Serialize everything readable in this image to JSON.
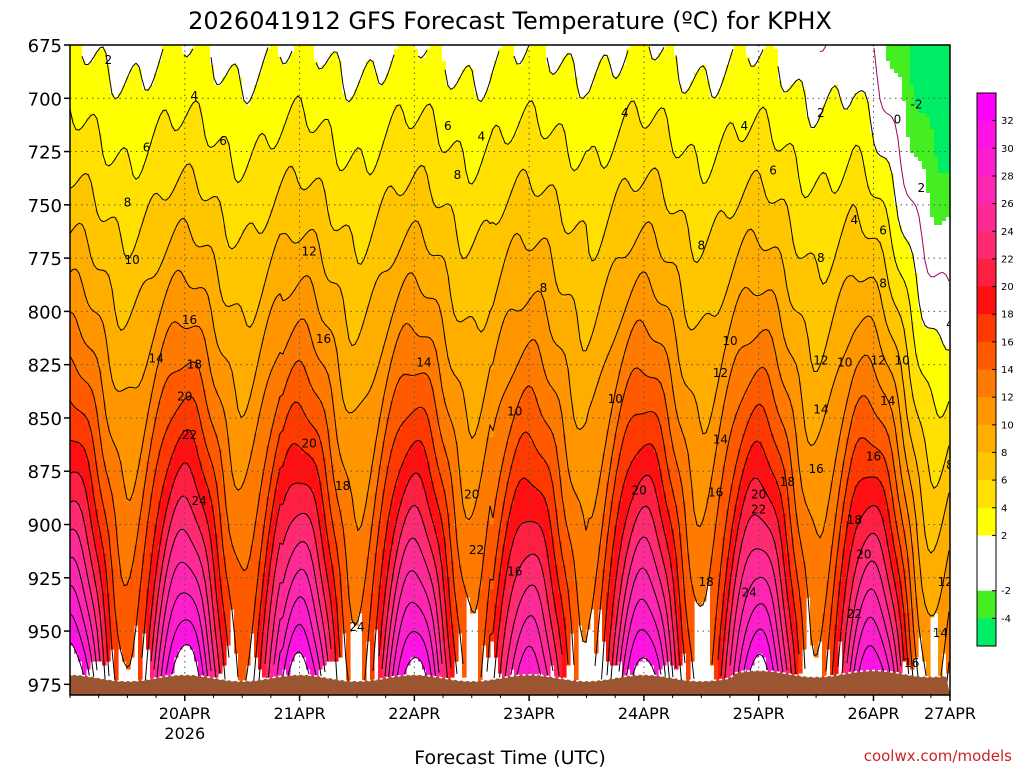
{
  "chart_data": {
    "type": "heatmap",
    "title": "2026041912 GFS Forecast Temperature (ºC) for KPHX",
    "xlabel": "Forecast Time (UTC)",
    "credit": "coolwx.com/models",
    "y_axis": {
      "ticks": [
        675,
        700,
        725,
        750,
        775,
        800,
        825,
        850,
        875,
        900,
        925,
        950,
        975
      ],
      "tick_labels": [
        "675",
        "700",
        "725",
        "750",
        "775",
        "800",
        "825",
        "850",
        "875",
        "900",
        "925",
        "950",
        "975"
      ],
      "range": [
        675,
        980
      ],
      "direction": "inverted"
    },
    "x_axis": {
      "range_hours": [
        -8,
        176
      ],
      "ticks": [
        {
          "hour": 16,
          "label": "20APR",
          "sublabel": "2026"
        },
        {
          "hour": 40,
          "label": "21APR",
          "sublabel": ""
        },
        {
          "hour": 64,
          "label": "22APR",
          "sublabel": ""
        },
        {
          "hour": 88,
          "label": "23APR",
          "sublabel": ""
        },
        {
          "hour": 112,
          "label": "24APR",
          "sublabel": ""
        },
        {
          "hour": 136,
          "label": "25APR",
          "sublabel": ""
        },
        {
          "hour": 160,
          "label": "26APR",
          "sublabel": ""
        },
        {
          "hour": 184,
          "label": "27APR",
          "sublabel": ""
        }
      ]
    },
    "colorbar": {
      "labels": [
        "32",
        "30",
        "28",
        "26",
        "24",
        "22",
        "20",
        "18",
        "16",
        "14",
        "12",
        "10",
        "8",
        "6",
        "4",
        "2",
        "-2",
        "-4"
      ],
      "bands": [
        {
          "min": 32,
          "color": "#ff00ff"
        },
        {
          "min": 30,
          "color": "#ff12e4"
        },
        {
          "min": 28,
          "color": "#ff1ecc"
        },
        {
          "min": 26,
          "color": "#ff26b2"
        },
        {
          "min": 24,
          "color": "#ff2a96"
        },
        {
          "min": 22,
          "color": "#ff2a72"
        },
        {
          "min": 20,
          "color": "#ff1f40"
        },
        {
          "min": 18,
          "color": "#ff0f10"
        },
        {
          "min": 16,
          "color": "#ff3a00"
        },
        {
          "min": 14,
          "color": "#ff5a00"
        },
        {
          "min": 12,
          "color": "#ff7a00"
        },
        {
          "min": 10,
          "color": "#ff9600"
        },
        {
          "min": 8,
          "color": "#ffae00"
        },
        {
          "min": 6,
          "color": "#ffc600"
        },
        {
          "min": 4,
          "color": "#ffe000"
        },
        {
          "min": 2,
          "color": "#ffff00"
        },
        {
          "min": 0,
          "color": "#ffffff"
        },
        {
          "min": -2,
          "color": "#ffffff"
        },
        {
          "min": -4,
          "color": "#44ee22"
        },
        {
          "min": -99,
          "color": "#00ee66"
        }
      ]
    },
    "contour_levels": [
      0,
      2,
      4,
      6,
      8,
      10,
      12,
      14,
      16,
      18,
      20,
      22,
      24,
      26,
      28,
      30,
      32
    ],
    "contour_labels": [
      {
        "t": 0,
        "p": 682,
        "v": "2"
      },
      {
        "t": 18,
        "p": 699,
        "v": "4"
      },
      {
        "t": 24,
        "p": 720,
        "v": "6"
      },
      {
        "t": 8,
        "p": 723,
        "v": "6"
      },
      {
        "t": 4,
        "p": 749,
        "v": "8"
      },
      {
        "t": 5,
        "p": 776,
        "v": "10"
      },
      {
        "t": 42,
        "p": 772,
        "v": "12"
      },
      {
        "t": 17,
        "p": 804,
        "v": "16"
      },
      {
        "t": 10,
        "p": 822,
        "v": "14"
      },
      {
        "t": 18,
        "p": 825,
        "v": "18"
      },
      {
        "t": 16,
        "p": 840,
        "v": "20"
      },
      {
        "t": 17,
        "p": 858,
        "v": "22"
      },
      {
        "t": 19,
        "p": 889,
        "v": "24"
      },
      {
        "t": 45,
        "p": 813,
        "v": "16"
      },
      {
        "t": 42,
        "p": 862,
        "v": "20"
      },
      {
        "t": 49,
        "p": 882,
        "v": "18"
      },
      {
        "t": 52,
        "p": 948,
        "v": "24"
      },
      {
        "t": 71,
        "p": 713,
        "v": "6"
      },
      {
        "t": 78,
        "p": 718,
        "v": "4"
      },
      {
        "t": 73,
        "p": 736,
        "v": "8"
      },
      {
        "t": 66,
        "p": 824,
        "v": "14"
      },
      {
        "t": 76,
        "p": 886,
        "v": "20"
      },
      {
        "t": 77,
        "p": 912,
        "v": "22"
      },
      {
        "t": 85,
        "p": 847,
        "v": "10"
      },
      {
        "t": 85,
        "p": 922,
        "v": "16"
      },
      {
        "t": 108,
        "p": 707,
        "v": "4"
      },
      {
        "t": 91,
        "p": 789,
        "v": "8"
      },
      {
        "t": 124,
        "p": 769,
        "v": "8"
      },
      {
        "t": 106,
        "p": 841,
        "v": "10"
      },
      {
        "t": 111,
        "p": 884,
        "v": "20"
      },
      {
        "t": 130,
        "p": 814,
        "v": "10"
      },
      {
        "t": 128,
        "p": 829,
        "v": "12"
      },
      {
        "t": 128,
        "p": 860,
        "v": "14"
      },
      {
        "t": 127,
        "p": 885,
        "v": "16"
      },
      {
        "t": 125,
        "p": 927,
        "v": "18"
      },
      {
        "t": 136,
        "p": 886,
        "v": "20"
      },
      {
        "t": 136,
        "p": 893,
        "v": "22"
      },
      {
        "t": 142,
        "p": 880,
        "v": "18"
      },
      {
        "t": 134,
        "p": 932,
        "v": "24"
      },
      {
        "t": 139,
        "p": 734,
        "v": "6"
      },
      {
        "t": 133,
        "p": 713,
        "v": "4"
      },
      {
        "t": 149,
        "p": 707,
        "v": "2"
      },
      {
        "t": 149,
        "p": 775,
        "v": "8"
      },
      {
        "t": 149,
        "p": 823,
        "v": "12"
      },
      {
        "t": 154,
        "p": 824,
        "v": "10"
      },
      {
        "t": 149,
        "p": 846,
        "v": "14"
      },
      {
        "t": 148,
        "p": 874,
        "v": "16"
      },
      {
        "t": 156,
        "p": 757,
        "v": "4"
      },
      {
        "t": 162,
        "p": 762,
        "v": "6"
      },
      {
        "t": 162,
        "p": 787,
        "v": "8"
      },
      {
        "t": 161,
        "p": 823,
        "v": "12"
      },
      {
        "t": 166,
        "p": 823,
        "v": "10"
      },
      {
        "t": 163,
        "p": 842,
        "v": "14"
      },
      {
        "t": 160,
        "p": 868,
        "v": "16"
      },
      {
        "t": 156,
        "p": 898,
        "v": "18"
      },
      {
        "t": 158,
        "p": 914,
        "v": "20"
      },
      {
        "t": 156,
        "p": 942,
        "v": "22"
      },
      {
        "t": 165,
        "p": 710,
        "v": "0"
      },
      {
        "t": 169,
        "p": 703,
        "v": "-2"
      },
      {
        "t": 170,
        "p": 742,
        "v": "2"
      },
      {
        "t": 176,
        "p": 806,
        "v": "4"
      },
      {
        "t": 177,
        "p": 837,
        "v": "6"
      },
      {
        "t": 176,
        "p": 872,
        "v": "8"
      },
      {
        "t": 178,
        "p": 881,
        "v": "10"
      },
      {
        "t": 175,
        "p": 927,
        "v": "12"
      },
      {
        "t": 174,
        "p": 951,
        "v": "14"
      },
      {
        "t": 168,
        "p": 965,
        "v": "16"
      }
    ]
  }
}
